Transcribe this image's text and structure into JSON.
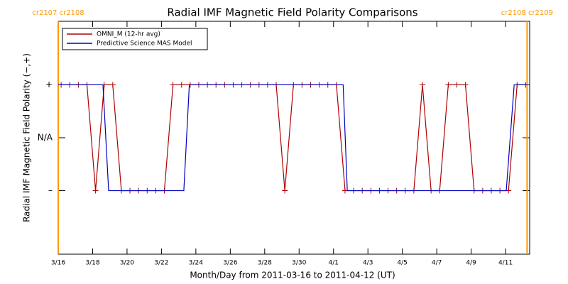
{
  "chart_data": {
    "type": "line",
    "title": "Radial IMF Magnetic Field Polarity Comparisons",
    "xlabel": "Month/Day from 2011-03-16 to 2011-04-12 (UT)",
    "ylabel": "Radial IMF Magnetic Field Polarity (−,+)",
    "xlim": [
      0,
      27.4
    ],
    "xticks": [
      {
        "value": 0,
        "label": "3/16"
      },
      {
        "value": 2,
        "label": "3/18"
      },
      {
        "value": 4,
        "label": "3/20"
      },
      {
        "value": 6,
        "label": "3/22"
      },
      {
        "value": 8,
        "label": "3/24"
      },
      {
        "value": 10,
        "label": "3/26"
      },
      {
        "value": 12,
        "label": "3/28"
      },
      {
        "value": 14,
        "label": "3/30"
      },
      {
        "value": 16,
        "label": "4/1"
      },
      {
        "value": 18,
        "label": "4/3"
      },
      {
        "value": 20,
        "label": "4/5"
      },
      {
        "value": 22,
        "label": "4/7"
      },
      {
        "value": 24,
        "label": "4/9"
      },
      {
        "value": 26,
        "label": "4/11"
      }
    ],
    "ylim": [
      -2.2,
      2.2
    ],
    "yticks": [
      {
        "value": -1,
        "label": "–"
      },
      {
        "value": 0,
        "label": "N/A"
      },
      {
        "value": 1,
        "label": "+"
      }
    ],
    "legend": "upper left",
    "series": [
      {
        "name": "OMNI_M (12-hr avg)",
        "color": "#b00000",
        "markers": true,
        "x": [
          0.17,
          0.67,
          1.17,
          1.67,
          2.17,
          2.67,
          3.17,
          3.67,
          4.17,
          4.67,
          5.17,
          5.67,
          6.17,
          6.67,
          7.17,
          7.67,
          8.17,
          8.67,
          9.17,
          9.67,
          10.17,
          10.67,
          11.17,
          11.67,
          12.17,
          12.67,
          13.17,
          13.67,
          14.17,
          14.67,
          15.17,
          15.67,
          16.17,
          16.67,
          17.17,
          17.67,
          18.17,
          18.67,
          19.17,
          19.67,
          20.17,
          20.67,
          21.17,
          21.67,
          22.17,
          22.67,
          23.17,
          23.67,
          24.17,
          24.67,
          25.17,
          25.67,
          26.17,
          26.67,
          27.17
        ],
        "values": [
          1,
          1,
          1,
          1,
          -1,
          1,
          1,
          -1,
          -1,
          -1,
          -1,
          -1,
          -1,
          1,
          1,
          1,
          1,
          1,
          1,
          1,
          1,
          1,
          1,
          1,
          1,
          1,
          -1,
          1,
          1,
          1,
          1,
          1,
          1,
          -1,
          -1,
          -1,
          -1,
          -1,
          -1,
          -1,
          -1,
          -1,
          1,
          -1,
          -1,
          1,
          1,
          1,
          -1,
          -1,
          -1,
          -1,
          -1,
          1,
          1
        ]
      },
      {
        "name": "Predictive Science MAS Model",
        "color": "#0000c0",
        "markers": false,
        "x": [
          0,
          2.6,
          2.93,
          7.3,
          7.62,
          16.56,
          16.8,
          26.04,
          26.5,
          27.25
        ],
        "values": [
          1,
          1,
          -1,
          -1,
          1,
          1,
          -1,
          -1,
          1,
          1
        ]
      }
    ],
    "annotation_color": "#ff9900",
    "annotations": [
      {
        "x": 0,
        "label": "cr2107 cr2108"
      },
      {
        "x": 27.25,
        "label": "cr2108 cr2109"
      }
    ]
  }
}
